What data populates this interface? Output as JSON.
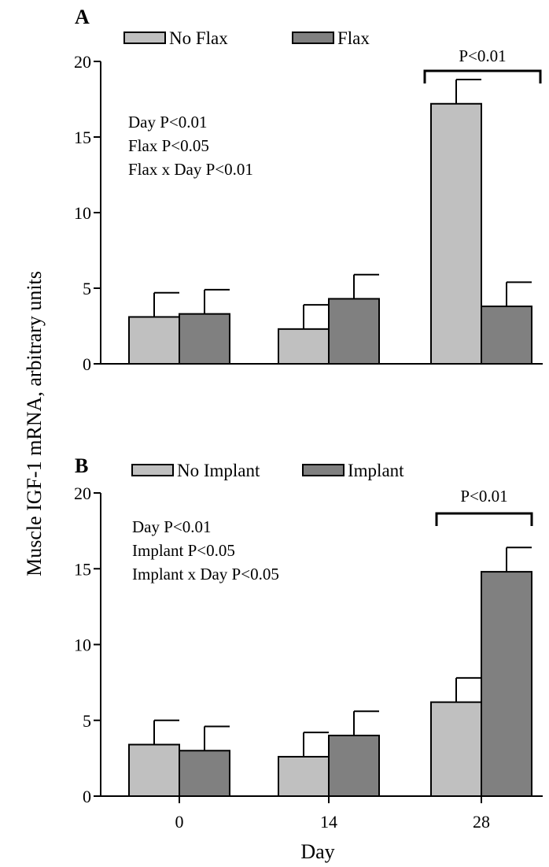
{
  "figure": {
    "shared_ylabel": "Muscle IGF-1 mRNA, arbitrary units",
    "shared_xlabel": "Day"
  },
  "chart_data": [
    {
      "type": "bar",
      "panel": "A",
      "categories": [
        "0",
        "14",
        "28"
      ],
      "ylim": [
        0,
        20
      ],
      "yticks": [
        0,
        5,
        10,
        15,
        20
      ],
      "series": [
        {
          "name": "No Flax",
          "color": "#c0c0c0",
          "values": [
            3.1,
            2.3,
            17.2
          ],
          "errors": [
            1.6,
            1.6,
            1.6
          ]
        },
        {
          "name": "Flax",
          "color": "#808080",
          "values": [
            3.3,
            4.3,
            3.8
          ],
          "errors": [
            1.6,
            1.6,
            1.6
          ]
        }
      ],
      "stats": [
        "Day P<0.01",
        "Flax P<0.05",
        "Flax x Day P<0.01"
      ],
      "significance": {
        "category": "28",
        "label": "P<0.01"
      },
      "legend_position": "top-left",
      "grid": false
    },
    {
      "type": "bar",
      "panel": "B",
      "categories": [
        "0",
        "14",
        "28"
      ],
      "ylim": [
        0,
        20
      ],
      "yticks": [
        0,
        5,
        10,
        15,
        20
      ],
      "series": [
        {
          "name": "No Implant",
          "color": "#c0c0c0",
          "values": [
            3.4,
            2.6,
            6.2
          ],
          "errors": [
            1.6,
            1.6,
            1.6
          ]
        },
        {
          "name": "Implant",
          "color": "#808080",
          "values": [
            3.0,
            4.0,
            14.8
          ],
          "errors": [
            1.6,
            1.6,
            1.6
          ]
        }
      ],
      "stats": [
        "Day P<0.01",
        "Implant P<0.05",
        "Implant x Day P<0.05"
      ],
      "significance": {
        "category": "28",
        "label": "P<0.01"
      },
      "legend_position": "top-left",
      "grid": false
    }
  ]
}
